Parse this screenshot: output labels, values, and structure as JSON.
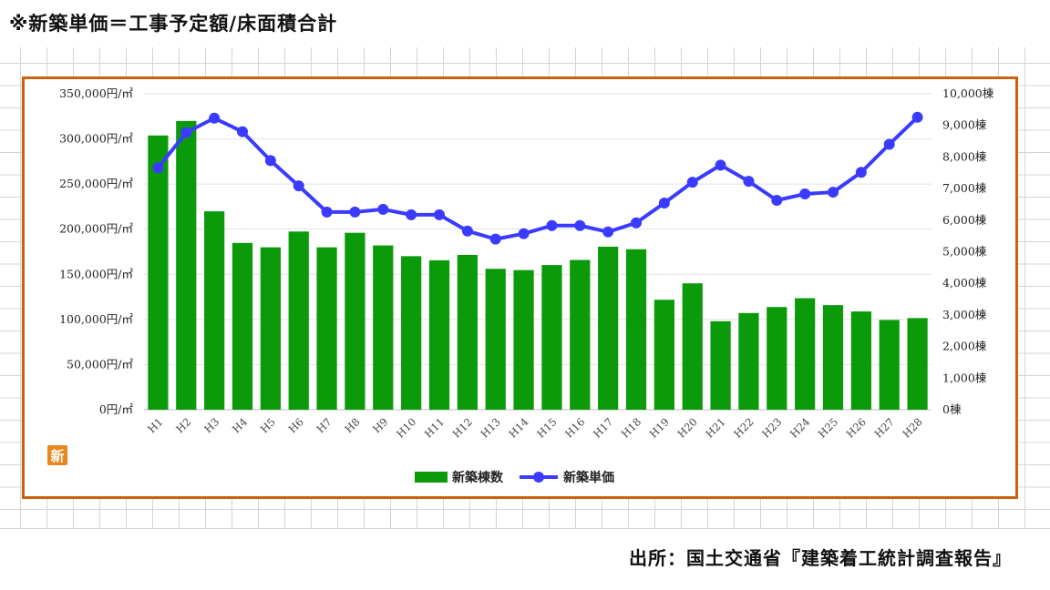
{
  "header": {
    "note": "※新築単価＝工事予定額/床面積合計"
  },
  "footer": {
    "source": "出所：国土交通省『建築着工統計調査報告』"
  },
  "badge": {
    "label": "新",
    "color": "#e8871e"
  },
  "colors": {
    "bar": "#0a9a0a",
    "line": "#3b3bff",
    "frame": "#c8620f"
  },
  "chart_data": {
    "type": "bar",
    "categories": [
      "H1",
      "H2",
      "H3",
      "H4",
      "H5",
      "H6",
      "H7",
      "H8",
      "H9",
      "H10",
      "H11",
      "H12",
      "H13",
      "H14",
      "H15",
      "H16",
      "H17",
      "H18",
      "H19",
      "H20",
      "H21",
      "H22",
      "H23",
      "H24",
      "H25",
      "H26",
      "H27",
      "H28"
    ],
    "series": [
      {
        "name": "新築棟数",
        "type": "bar",
        "axis": "right",
        "values": [
          8680,
          9140,
          6280,
          5280,
          5140,
          5640,
          5140,
          5600,
          5200,
          4860,
          4730,
          4900,
          4460,
          4420,
          4580,
          4740,
          5160,
          5080,
          3480,
          4000,
          2800,
          3060,
          3250,
          3530,
          3310,
          3110,
          2840,
          2900
        ]
      },
      {
        "name": "新築単価",
        "type": "line",
        "axis": "left",
        "values": [
          268000,
          307000,
          323000,
          308000,
          276000,
          248000,
          219000,
          219000,
          222000,
          216000,
          216000,
          198000,
          189000,
          195000,
          204000,
          204000,
          197000,
          207000,
          229000,
          252000,
          271000,
          253000,
          232000,
          239000,
          241000,
          263000,
          294000,
          324000
        ]
      }
    ],
    "y_left": {
      "min": 0,
      "max": 350000,
      "step": 50000,
      "unit": "円/㎡",
      "ticks": [
        "0円/㎡",
        "50,000円/㎡",
        "100,000円/㎡",
        "150,000円/㎡",
        "200,000円/㎡",
        "250,000円/㎡",
        "300,000円/㎡",
        "350,000円/㎡"
      ]
    },
    "y_right": {
      "min": 0,
      "max": 10000,
      "step": 1000,
      "unit": "棟",
      "ticks": [
        "0棟",
        "1,000棟",
        "2,000棟",
        "3,000棟",
        "4,000棟",
        "5,000棟",
        "6,000棟",
        "7,000棟",
        "8,000棟",
        "9,000棟",
        "10,000棟"
      ]
    },
    "legend_position": "bottom",
    "grid": true
  }
}
